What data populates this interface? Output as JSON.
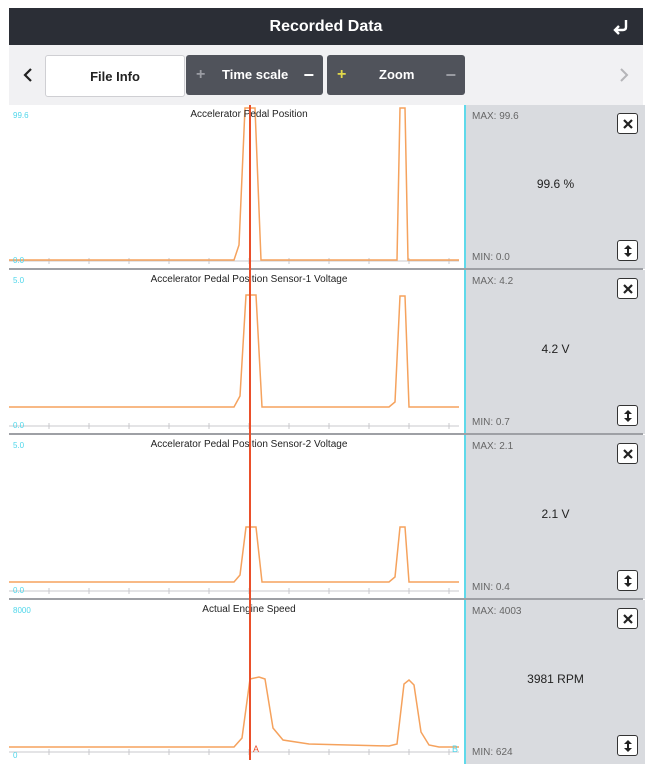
{
  "header": {
    "title": "Recorded Data",
    "back_icon": "return-arrow-icon"
  },
  "toolbar": {
    "prev_icon": "chevron-left-icon",
    "next_icon": "chevron-right-icon",
    "file_info_label": "File Info",
    "timescale_label": "Time scale",
    "zoom_label": "Zoom",
    "plus": "+",
    "minus": "−"
  },
  "cursor": {
    "label_a": "A",
    "label_b": "B",
    "color": "#ea4f2a"
  },
  "colors": {
    "trace": "#f5a25d",
    "axis_value": "#4fd6ea",
    "side_bg": "#d9dbdf"
  },
  "panels": [
    {
      "title": "Accelerator Pedal Position",
      "ymax": "99.6",
      "ymin": "0.0",
      "max": "MAX: 99.6",
      "min": "MIN: 0.0",
      "value": "99.6 %"
    },
    {
      "title": "Accelerator Pedal Position Sensor-1 Voltage",
      "ymax": "5.0",
      "ymin": "0.0",
      "max": "MAX: 4.2",
      "min": "MIN: 0.7",
      "value": "4.2 V"
    },
    {
      "title": "Accelerator Pedal Position Sensor-2 Voltage",
      "ymax": "5.0",
      "ymin": "0.0",
      "max": "MAX: 2.1",
      "min": "MIN: 0.4",
      "value": "2.1 V"
    },
    {
      "title": "Actual Engine Speed",
      "ymax": "8000",
      "ymin": "0",
      "max": "MAX: 4003",
      "min": "MIN: 624",
      "value": "3981 RPM"
    }
  ]
}
